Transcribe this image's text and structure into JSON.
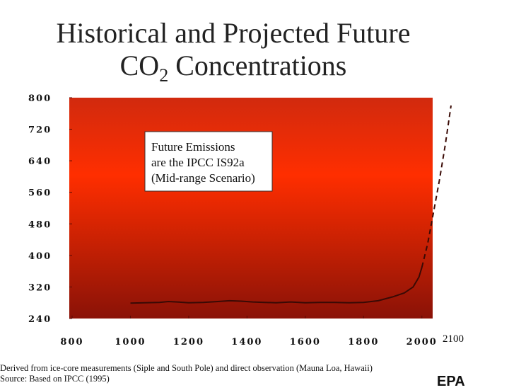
{
  "title": {
    "line1": "Historical and Projected Future",
    "line2_pre": "CO",
    "line2_sub": "2",
    "line2_post": " Concentrations"
  },
  "annotation": [
    "Future Emissions",
    "are the IPCC IS92a",
    "(Mid-range Scenario)"
  ],
  "footer": {
    "line1": "Derived from ice-core measurements (Siple and South Pole) and direct observation (Mauna Loa, Hawaii)",
    "line2": "Source: Based on IPCC (1995)"
  },
  "logo": "EPA",
  "colors": {
    "plot_top": "#d12a0e",
    "plot_mid": "#ff2e00",
    "plot_bottom": "#8a1207",
    "line": "#3a0a05"
  },
  "chart_data": {
    "type": "line",
    "title": "Historical and Projected Future CO2 Concentrations",
    "xlabel": "",
    "ylabel": "",
    "xlim": [
      800,
      2100
    ],
    "ylim": [
      240,
      800
    ],
    "xticks": [
      800,
      1000,
      1200,
      1400,
      1600,
      1800,
      2000
    ],
    "xticks_extra": [
      2100
    ],
    "yticks": [
      240,
      320,
      400,
      480,
      560,
      640,
      720,
      800
    ],
    "grid": false,
    "series": [
      {
        "name": "",
        "style": "solid",
        "x": [
          1000,
          1050,
          1100,
          1130,
          1160,
          1200,
          1250,
          1300,
          1340,
          1380,
          1420,
          1460,
          1500,
          1550,
          1600,
          1650,
          1700,
          1750,
          1800,
          1850,
          1900,
          1940,
          1970,
          1990,
          2000
        ],
        "y": [
          279,
          280,
          281,
          283,
          282,
          280,
          281,
          283,
          285,
          284,
          282,
          281,
          280,
          282,
          280,
          281,
          281,
          280,
          281,
          285,
          295,
          305,
          320,
          345,
          370
        ]
      },
      {
        "name": "",
        "style": "dashed",
        "x": [
          2000,
          2020,
          2040,
          2060,
          2080,
          2100
        ],
        "y": [
          370,
          430,
          510,
          590,
          680,
          780
        ]
      }
    ]
  }
}
